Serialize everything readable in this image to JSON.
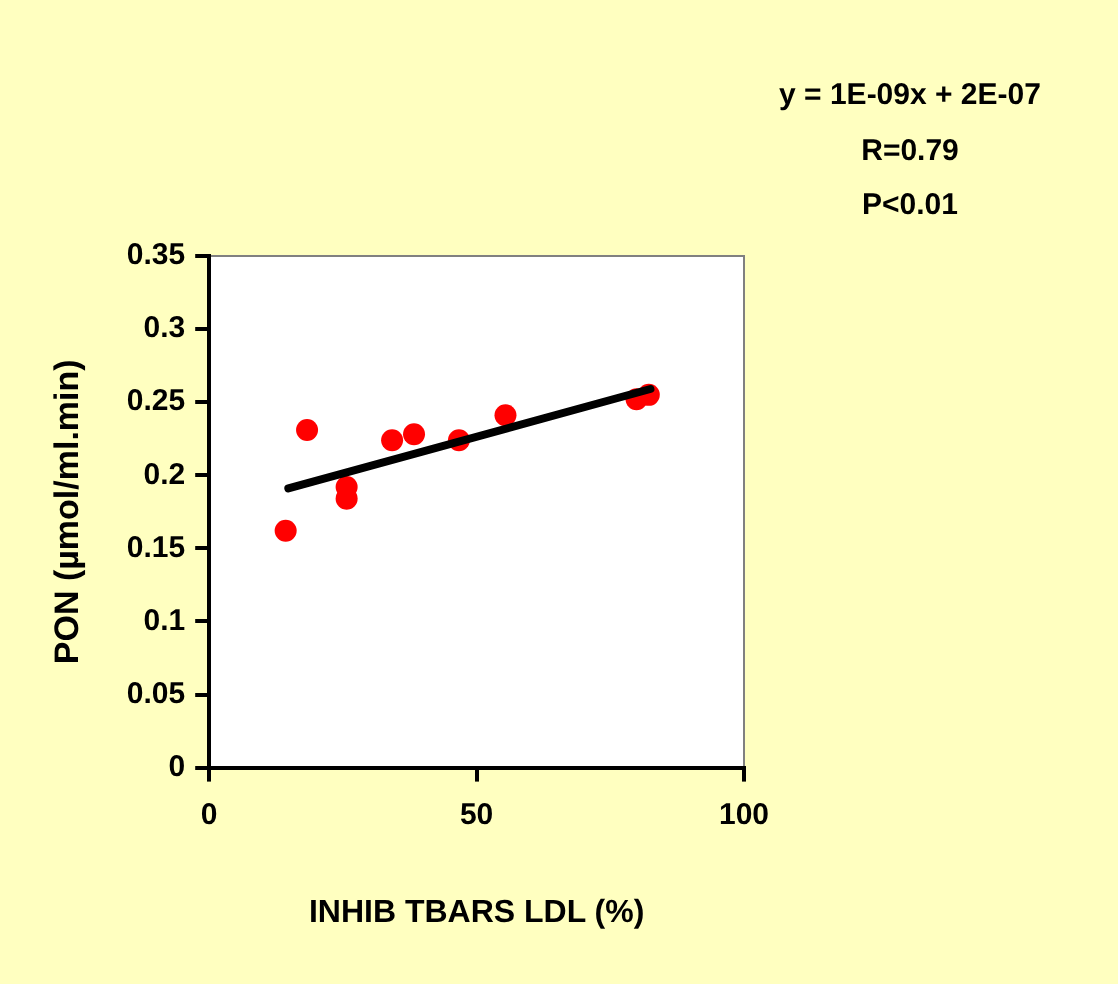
{
  "chart_data": {
    "type": "scatter",
    "xlabel": "INHIB TBARS LDL (%)",
    "ylabel": "PON (µmol/ml.min)",
    "annotations": [
      "y = 1E-09x + 2E-07",
      "R=0.79",
      "P<0.01"
    ],
    "xlim": [
      0,
      100
    ],
    "xticks": [
      0,
      50,
      100
    ],
    "ylim": [
      0,
      0.35
    ],
    "yticks": [
      0,
      0.05,
      0.1,
      0.15,
      0.2,
      0.25,
      0.3,
      0.35
    ],
    "marker": "circle",
    "legend": false,
    "series": [
      {
        "color": "#ff0000",
        "x": [
          14.3,
          18.3,
          25.7,
          25.7,
          34.2,
          38.3,
          46.7,
          55.4,
          79.9,
          82.2
        ],
        "values": [
          0.162,
          0.231,
          0.192,
          0.184,
          0.224,
          0.228,
          0.224,
          0.241,
          0.252,
          0.255
        ]
      },
      {
        "type": "line",
        "color": "#000000",
        "line_style": "solid",
        "marker": "none",
        "x": [
          14.8,
          82.5
        ],
        "values": [
          0.191,
          0.259
        ]
      }
    ]
  }
}
